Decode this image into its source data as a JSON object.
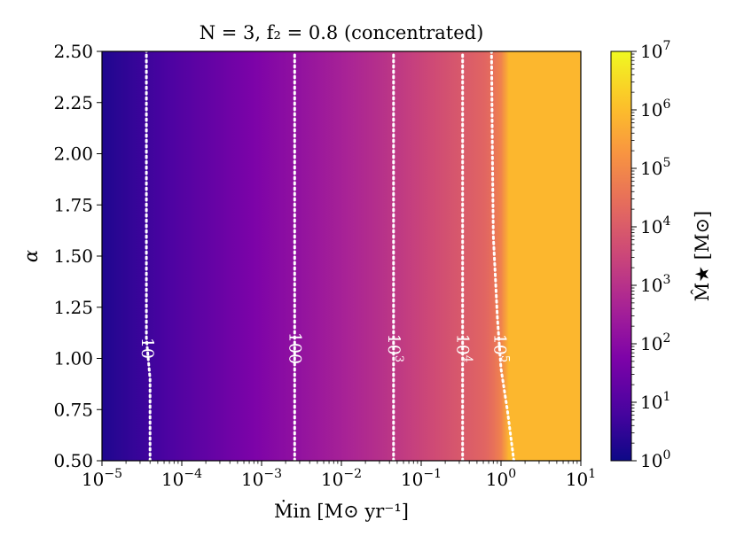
{
  "chart_data": {
    "type": "heatmap",
    "title": "N = 3, f₂ = 0.8 (concentrated)",
    "xlabel": "Ṁin [M⊙ yr⁻¹]",
    "ylabel": "α",
    "xscale": "log",
    "xlim": [
      1e-05,
      10
    ],
    "ylim": [
      0.5,
      2.5
    ],
    "x_ticks": [
      {
        "value": 1e-05,
        "base": "10",
        "exp": "−5"
      },
      {
        "value": 0.0001,
        "base": "10",
        "exp": "−4"
      },
      {
        "value": 0.001,
        "base": "10",
        "exp": "−3"
      },
      {
        "value": 0.01,
        "base": "10",
        "exp": "−2"
      },
      {
        "value": 0.1,
        "base": "10",
        "exp": "−1"
      },
      {
        "value": 1,
        "base": "10",
        "exp": "0"
      },
      {
        "value": 10,
        "base": "10",
        "exp": "1"
      }
    ],
    "y_ticks": [
      "0.50",
      "0.75",
      "1.00",
      "1.25",
      "1.50",
      "1.75",
      "2.00",
      "2.25",
      "2.50"
    ],
    "colorbar": {
      "label": "M̂★ [M⊙]",
      "scale": "log",
      "range": [
        1,
        10000000.0
      ],
      "colormap": "plasma",
      "ticks": [
        {
          "value": 1,
          "base": "10",
          "exp": "0"
        },
        {
          "value": 10,
          "base": "10",
          "exp": "1"
        },
        {
          "value": 100,
          "base": "10",
          "exp": "2"
        },
        {
          "value": 1000,
          "base": "10",
          "exp": "3"
        },
        {
          "value": 10000,
          "base": "10",
          "exp": "4"
        },
        {
          "value": 100000,
          "base": "10",
          "exp": "5"
        },
        {
          "value": 1000000,
          "base": "10",
          "exp": "6"
        },
        {
          "value": 10000000,
          "base": "10",
          "exp": "7"
        }
      ]
    },
    "contours": [
      {
        "level": 10,
        "label_base": "10",
        "label_exp": "",
        "label_y": 1.05,
        "points": [
          [
            4e-05,
            0.5
          ],
          [
            4e-05,
            0.9
          ],
          [
            3.6e-05,
            1.1
          ],
          [
            3.6e-05,
            2.5
          ]
        ]
      },
      {
        "level": 100,
        "label_base": "100",
        "label_exp": "",
        "label_y": 1.05,
        "points": [
          [
            0.0026,
            0.5
          ],
          [
            0.0026,
            2.5
          ]
        ]
      },
      {
        "level": 1000,
        "label_base": "10",
        "label_exp": "3",
        "label_y": 1.05,
        "points": [
          [
            0.045,
            0.5
          ],
          [
            0.045,
            2.5
          ]
        ]
      },
      {
        "level": 10000,
        "label_base": "10",
        "label_exp": "4",
        "label_y": 1.05,
        "points": [
          [
            0.33,
            0.5
          ],
          [
            0.33,
            2.5
          ]
        ]
      },
      {
        "level": 100000,
        "label_base": "10",
        "label_exp": "5",
        "label_y": 1.05,
        "points": [
          [
            1.45,
            0.5
          ],
          [
            1.2,
            0.75
          ],
          [
            1.0,
            0.95
          ],
          [
            0.9,
            1.2
          ],
          [
            0.8,
            1.6
          ],
          [
            0.78,
            2.0
          ],
          [
            0.76,
            2.5
          ]
        ]
      }
    ],
    "field_description_values": {
      "log_mass_at_x_min": 0.25,
      "log_mass_slope_per_decade": 0.78,
      "saturation_log_mass": 5.9
    }
  }
}
